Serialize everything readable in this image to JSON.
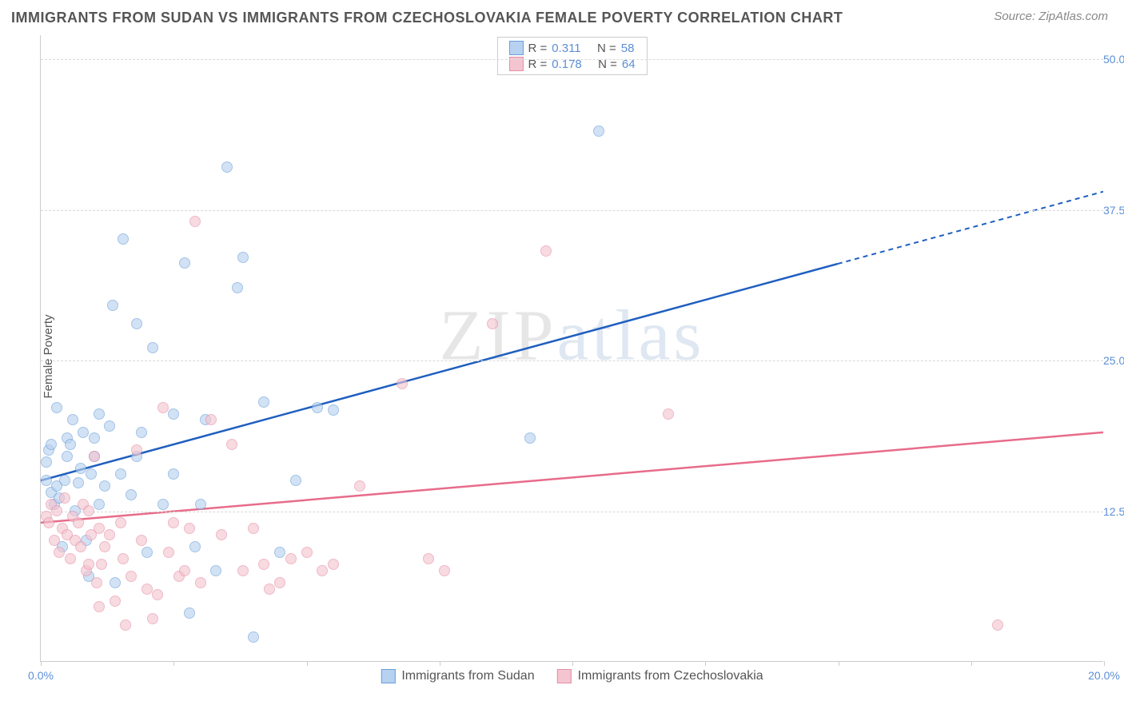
{
  "title": "IMMIGRANTS FROM SUDAN VS IMMIGRANTS FROM CZECHOSLOVAKIA FEMALE POVERTY CORRELATION CHART",
  "source_prefix": "Source: ",
  "source": "ZipAtlas.com",
  "watermark_a": "ZIP",
  "watermark_b": "atlas",
  "chart": {
    "type": "scatter-with-trendlines",
    "ylabel": "Female Poverty",
    "xlim": [
      0,
      20
    ],
    "ylim": [
      0,
      52
    ],
    "x_suffix": "%",
    "y_suffix": "%",
    "xtick_positions": [
      0,
      2.5,
      5,
      7.5,
      10,
      12.5,
      15,
      17.5,
      20
    ],
    "xtick_labels": {
      "0": "0.0%",
      "20": "20.0%"
    },
    "ytick_positions": [
      12.5,
      25,
      37.5,
      50
    ],
    "ytick_labels": {
      "12.5": "12.5%",
      "25": "25.0%",
      "37.5": "37.5%",
      "50": "50.0%"
    },
    "gridline_color": "#d8d8d8",
    "axis_color": "#cccccc",
    "tick_label_color": "#5b8fd6",
    "background_color": "#ffffff",
    "series": [
      {
        "id": "sudan",
        "label": "Immigrants from Sudan",
        "fill": "#b7d1f0",
        "stroke": "#6a9fd8",
        "line_color": "#1f5fbf",
        "R": "0.311",
        "N": "58",
        "trend": {
          "x1": 0,
          "y1": 15.0,
          "x2": 15.0,
          "y2": 33.0,
          "dash_x2": 20.0,
          "dash_y2": 39.0
        },
        "points": [
          [
            0.1,
            15.0
          ],
          [
            0.1,
            16.5
          ],
          [
            0.15,
            17.5
          ],
          [
            0.2,
            14.0
          ],
          [
            0.2,
            18.0
          ],
          [
            0.25,
            13.0
          ],
          [
            0.3,
            21.0
          ],
          [
            0.35,
            13.5
          ],
          [
            0.4,
            9.5
          ],
          [
            0.45,
            15.0
          ],
          [
            0.5,
            18.5
          ],
          [
            0.55,
            18.0
          ],
          [
            0.6,
            20.0
          ],
          [
            0.65,
            12.5
          ],
          [
            0.7,
            14.8
          ],
          [
            0.75,
            16.0
          ],
          [
            0.8,
            19.0
          ],
          [
            0.85,
            10.0
          ],
          [
            0.9,
            7.0
          ],
          [
            0.95,
            15.5
          ],
          [
            1.0,
            18.5
          ],
          [
            1.0,
            17.0
          ],
          [
            1.1,
            20.5
          ],
          [
            1.1,
            13.0
          ],
          [
            1.2,
            14.5
          ],
          [
            1.3,
            19.5
          ],
          [
            1.35,
            29.5
          ],
          [
            1.4,
            6.5
          ],
          [
            1.5,
            15.5
          ],
          [
            1.55,
            35.0
          ],
          [
            1.7,
            13.8
          ],
          [
            1.8,
            28.0
          ],
          [
            1.8,
            17.0
          ],
          [
            1.9,
            19.0
          ],
          [
            2.0,
            9.0
          ],
          [
            2.1,
            26.0
          ],
          [
            2.3,
            13.0
          ],
          [
            2.5,
            15.5
          ],
          [
            2.5,
            20.5
          ],
          [
            2.7,
            33.0
          ],
          [
            2.8,
            4.0
          ],
          [
            2.9,
            9.5
          ],
          [
            3.0,
            13.0
          ],
          [
            3.1,
            20.0
          ],
          [
            3.3,
            7.5
          ],
          [
            3.5,
            41.0
          ],
          [
            3.7,
            31.0
          ],
          [
            3.8,
            33.5
          ],
          [
            4.0,
            2.0
          ],
          [
            4.2,
            21.5
          ],
          [
            4.5,
            9.0
          ],
          [
            4.8,
            15.0
          ],
          [
            5.2,
            21.0
          ],
          [
            5.5,
            20.8
          ],
          [
            9.2,
            18.5
          ],
          [
            10.5,
            44.0
          ],
          [
            0.5,
            17.0
          ],
          [
            0.3,
            14.5
          ]
        ]
      },
      {
        "id": "czech",
        "label": "Immigrants from Czechoslovakia",
        "fill": "#f4c5d0",
        "stroke": "#e48fa6",
        "line_color": "#e86b8a",
        "R": "0.178",
        "N": "64",
        "trend": {
          "x1": 0,
          "y1": 11.5,
          "x2": 20.0,
          "y2": 19.0
        },
        "points": [
          [
            0.1,
            12.0
          ],
          [
            0.15,
            11.5
          ],
          [
            0.2,
            13.0
          ],
          [
            0.25,
            10.0
          ],
          [
            0.3,
            12.5
          ],
          [
            0.35,
            9.0
          ],
          [
            0.4,
            11.0
          ],
          [
            0.45,
            13.5
          ],
          [
            0.5,
            10.5
          ],
          [
            0.55,
            8.5
          ],
          [
            0.6,
            12.0
          ],
          [
            0.65,
            10.0
          ],
          [
            0.7,
            11.5
          ],
          [
            0.75,
            9.5
          ],
          [
            0.8,
            13.0
          ],
          [
            0.85,
            7.5
          ],
          [
            0.9,
            12.5
          ],
          [
            0.95,
            10.5
          ],
          [
            1.0,
            17.0
          ],
          [
            1.05,
            6.5
          ],
          [
            1.1,
            11.0
          ],
          [
            1.15,
            8.0
          ],
          [
            1.2,
            9.5
          ],
          [
            1.3,
            10.5
          ],
          [
            1.4,
            5.0
          ],
          [
            1.5,
            11.5
          ],
          [
            1.55,
            8.5
          ],
          [
            1.6,
            3.0
          ],
          [
            1.7,
            7.0
          ],
          [
            1.8,
            17.5
          ],
          [
            1.9,
            10.0
          ],
          [
            2.0,
            6.0
          ],
          [
            2.1,
            3.5
          ],
          [
            2.2,
            5.5
          ],
          [
            2.3,
            21.0
          ],
          [
            2.4,
            9.0
          ],
          [
            2.5,
            11.5
          ],
          [
            2.6,
            7.0
          ],
          [
            2.7,
            7.5
          ],
          [
            2.8,
            11.0
          ],
          [
            2.9,
            36.5
          ],
          [
            3.0,
            6.5
          ],
          [
            3.2,
            20.0
          ],
          [
            3.4,
            10.5
          ],
          [
            3.6,
            18.0
          ],
          [
            3.8,
            7.5
          ],
          [
            4.0,
            11.0
          ],
          [
            4.2,
            8.0
          ],
          [
            4.3,
            6.0
          ],
          [
            4.5,
            6.5
          ],
          [
            4.7,
            8.5
          ],
          [
            5.0,
            9.0
          ],
          [
            5.3,
            7.5
          ],
          [
            5.5,
            8.0
          ],
          [
            6.0,
            14.5
          ],
          [
            6.8,
            23.0
          ],
          [
            7.3,
            8.5
          ],
          [
            7.6,
            7.5
          ],
          [
            8.5,
            28.0
          ],
          [
            9.5,
            34.0
          ],
          [
            11.8,
            20.5
          ],
          [
            18.0,
            3.0
          ],
          [
            0.9,
            8.0
          ],
          [
            1.1,
            4.5
          ]
        ]
      }
    ]
  },
  "legend_top": {
    "R_label": "R =",
    "N_label": "N ="
  }
}
